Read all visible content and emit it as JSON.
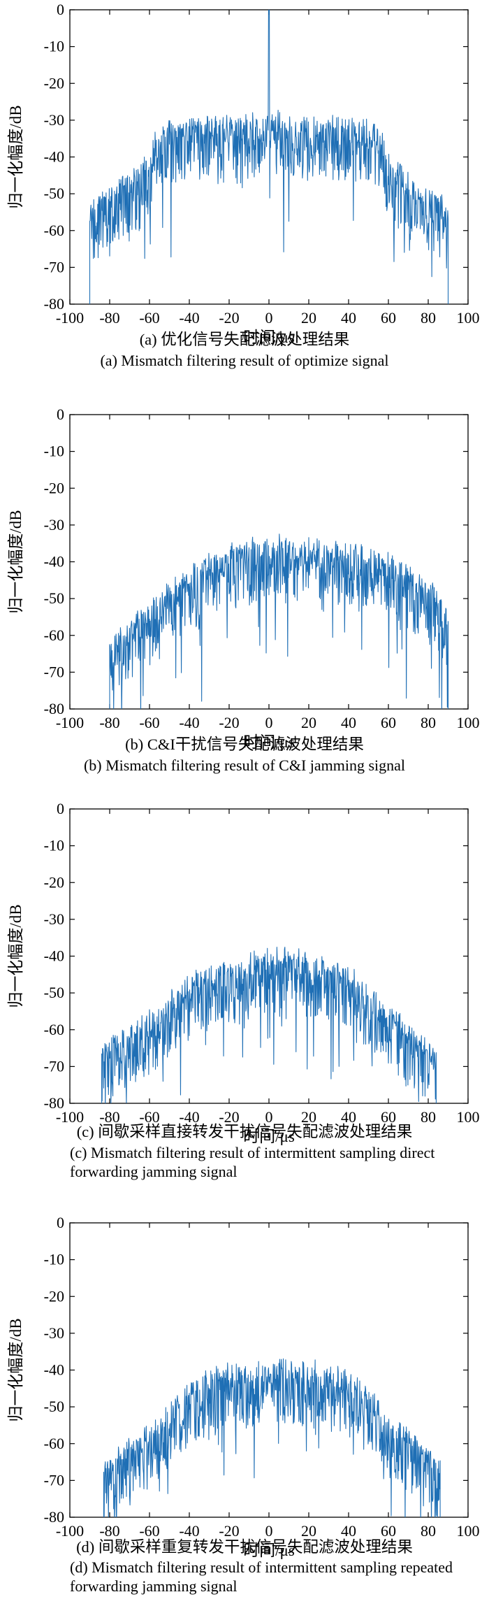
{
  "chart_data": [
    {
      "type": "line",
      "xlabel": "时间/μs",
      "ylabel": "归一化幅度/dB",
      "xlim": [
        -100,
        100
      ],
      "ylim": [
        -80,
        0
      ],
      "xticks": [
        -100,
        -80,
        -60,
        -40,
        -20,
        0,
        20,
        40,
        60,
        80,
        100
      ],
      "yticks": [
        0,
        -10,
        -20,
        -30,
        -40,
        -50,
        -60,
        -70,
        -80
      ],
      "grid": false,
      "series_color": "#1f6fb5",
      "caption_cn": "(a) 优化信号失配滤波处理结果",
      "caption_en": "(a) Mismatch filtering result of optimize signal",
      "envelope": [
        [
          -90,
          -55
        ],
        [
          -86,
          -52
        ],
        [
          -80,
          -50
        ],
        [
          -72,
          -47
        ],
        [
          -65,
          -44
        ],
        [
          -60,
          -40
        ],
        [
          -56,
          -34
        ],
        [
          -50,
          -32
        ],
        [
          -40,
          -31
        ],
        [
          -20,
          -31
        ],
        [
          -5,
          -30
        ],
        [
          0,
          -29
        ],
        [
          5,
          -30
        ],
        [
          20,
          -31
        ],
        [
          40,
          -31
        ],
        [
          50,
          -32
        ],
        [
          56,
          -34
        ],
        [
          60,
          -40
        ],
        [
          65,
          -44
        ],
        [
          72,
          -47
        ],
        [
          80,
          -50
        ],
        [
          86,
          -52
        ],
        [
          90,
          -56
        ]
      ],
      "x_range": [
        -90,
        90
      ],
      "peak": {
        "x": 0,
        "y": 0
      }
    },
    {
      "type": "line",
      "xlabel": "时间/μs",
      "ylabel": "归一化幅度/dB",
      "xlim": [
        -100,
        100
      ],
      "ylim": [
        -80,
        0
      ],
      "xticks": [
        -100,
        -80,
        -60,
        -40,
        -20,
        0,
        20,
        40,
        60,
        80,
        100
      ],
      "yticks": [
        0,
        -10,
        -20,
        -30,
        -40,
        -50,
        -60,
        -70,
        -80
      ],
      "grid": false,
      "series_color": "#1f6fb5",
      "caption_cn": "(b) C&I干扰信号失配滤波处理结果",
      "caption_en": "(b) Mismatch filtering result of C&I jamming signal",
      "envelope": [
        [
          -80,
          -63
        ],
        [
          -75,
          -60
        ],
        [
          -70,
          -57
        ],
        [
          -60,
          -53
        ],
        [
          -50,
          -48
        ],
        [
          -40,
          -44
        ],
        [
          -30,
          -40
        ],
        [
          -20,
          -37
        ],
        [
          -10,
          -36
        ],
        [
          0,
          -35
        ],
        [
          10,
          -35
        ],
        [
          20,
          -36
        ],
        [
          30,
          -37
        ],
        [
          40,
          -37
        ],
        [
          50,
          -38
        ],
        [
          60,
          -40
        ],
        [
          70,
          -43
        ],
        [
          80,
          -47
        ],
        [
          86,
          -51
        ],
        [
          90,
          -56
        ]
      ],
      "x_range": [
        -80,
        90
      ],
      "peak": null
    },
    {
      "type": "line",
      "xlabel": "时间/μs",
      "ylabel": "归一化幅度/dB",
      "xlim": [
        -100,
        100
      ],
      "ylim": [
        -80,
        0
      ],
      "xticks": [
        -100,
        -80,
        -60,
        -40,
        -20,
        0,
        20,
        40,
        60,
        80,
        100
      ],
      "yticks": [
        0,
        -10,
        -20,
        -30,
        -40,
        -50,
        -60,
        -70,
        -80
      ],
      "grid": false,
      "series_color": "#1f6fb5",
      "caption_cn": "(c) 间歇采样直接转发干扰信号失配滤波处理结果",
      "caption_en": "(c) Mismatch filtering result of intermittent sampling direct  forwarding jamming  signal",
      "envelope": [
        [
          -84,
          -66
        ],
        [
          -75,
          -63
        ],
        [
          -65,
          -59
        ],
        [
          -55,
          -54
        ],
        [
          -45,
          -49
        ],
        [
          -35,
          -46
        ],
        [
          -25,
          -44
        ],
        [
          -15,
          -42
        ],
        [
          -5,
          -41
        ],
        [
          0,
          -40
        ],
        [
          10,
          -40
        ],
        [
          20,
          -41
        ],
        [
          30,
          -43
        ],
        [
          40,
          -45
        ],
        [
          50,
          -49
        ],
        [
          60,
          -55
        ],
        [
          70,
          -60
        ],
        [
          80,
          -64
        ],
        [
          84,
          -67
        ]
      ],
      "x_range": [
        -84,
        84
      ],
      "peak": null
    },
    {
      "type": "line",
      "xlabel": "时间/μs",
      "ylabel": "归一化幅度/dB",
      "xlim": [
        -100,
        100
      ],
      "ylim": [
        -80,
        0
      ],
      "xticks": [
        -100,
        -80,
        -60,
        -40,
        -20,
        0,
        20,
        40,
        60,
        80,
        100
      ],
      "yticks": [
        0,
        -10,
        -20,
        -30,
        -40,
        -50,
        -60,
        -70,
        -80
      ],
      "grid": false,
      "series_color": "#1f6fb5",
      "caption_cn": "(d) 间歇采样重复转发干扰信号失配滤波处理结果",
      "caption_en": "(d) Mismatch filtering result of intermittent sampling repeated forwarding jamming signal",
      "envelope": [
        [
          -83,
          -66
        ],
        [
          -75,
          -63
        ],
        [
          -65,
          -59
        ],
        [
          -55,
          -54
        ],
        [
          -45,
          -48
        ],
        [
          -35,
          -43
        ],
        [
          -25,
          -41
        ],
        [
          -15,
          -40
        ],
        [
          -5,
          -40
        ],
        [
          0,
          -39
        ],
        [
          10,
          -39
        ],
        [
          20,
          -40
        ],
        [
          30,
          -40
        ],
        [
          40,
          -42
        ],
        [
          48,
          -45
        ],
        [
          55,
          -50
        ],
        [
          60,
          -55
        ],
        [
          70,
          -58
        ],
        [
          80,
          -62
        ],
        [
          86,
          -67
        ]
      ],
      "x_range": [
        -83,
        86
      ],
      "peak": null
    }
  ]
}
